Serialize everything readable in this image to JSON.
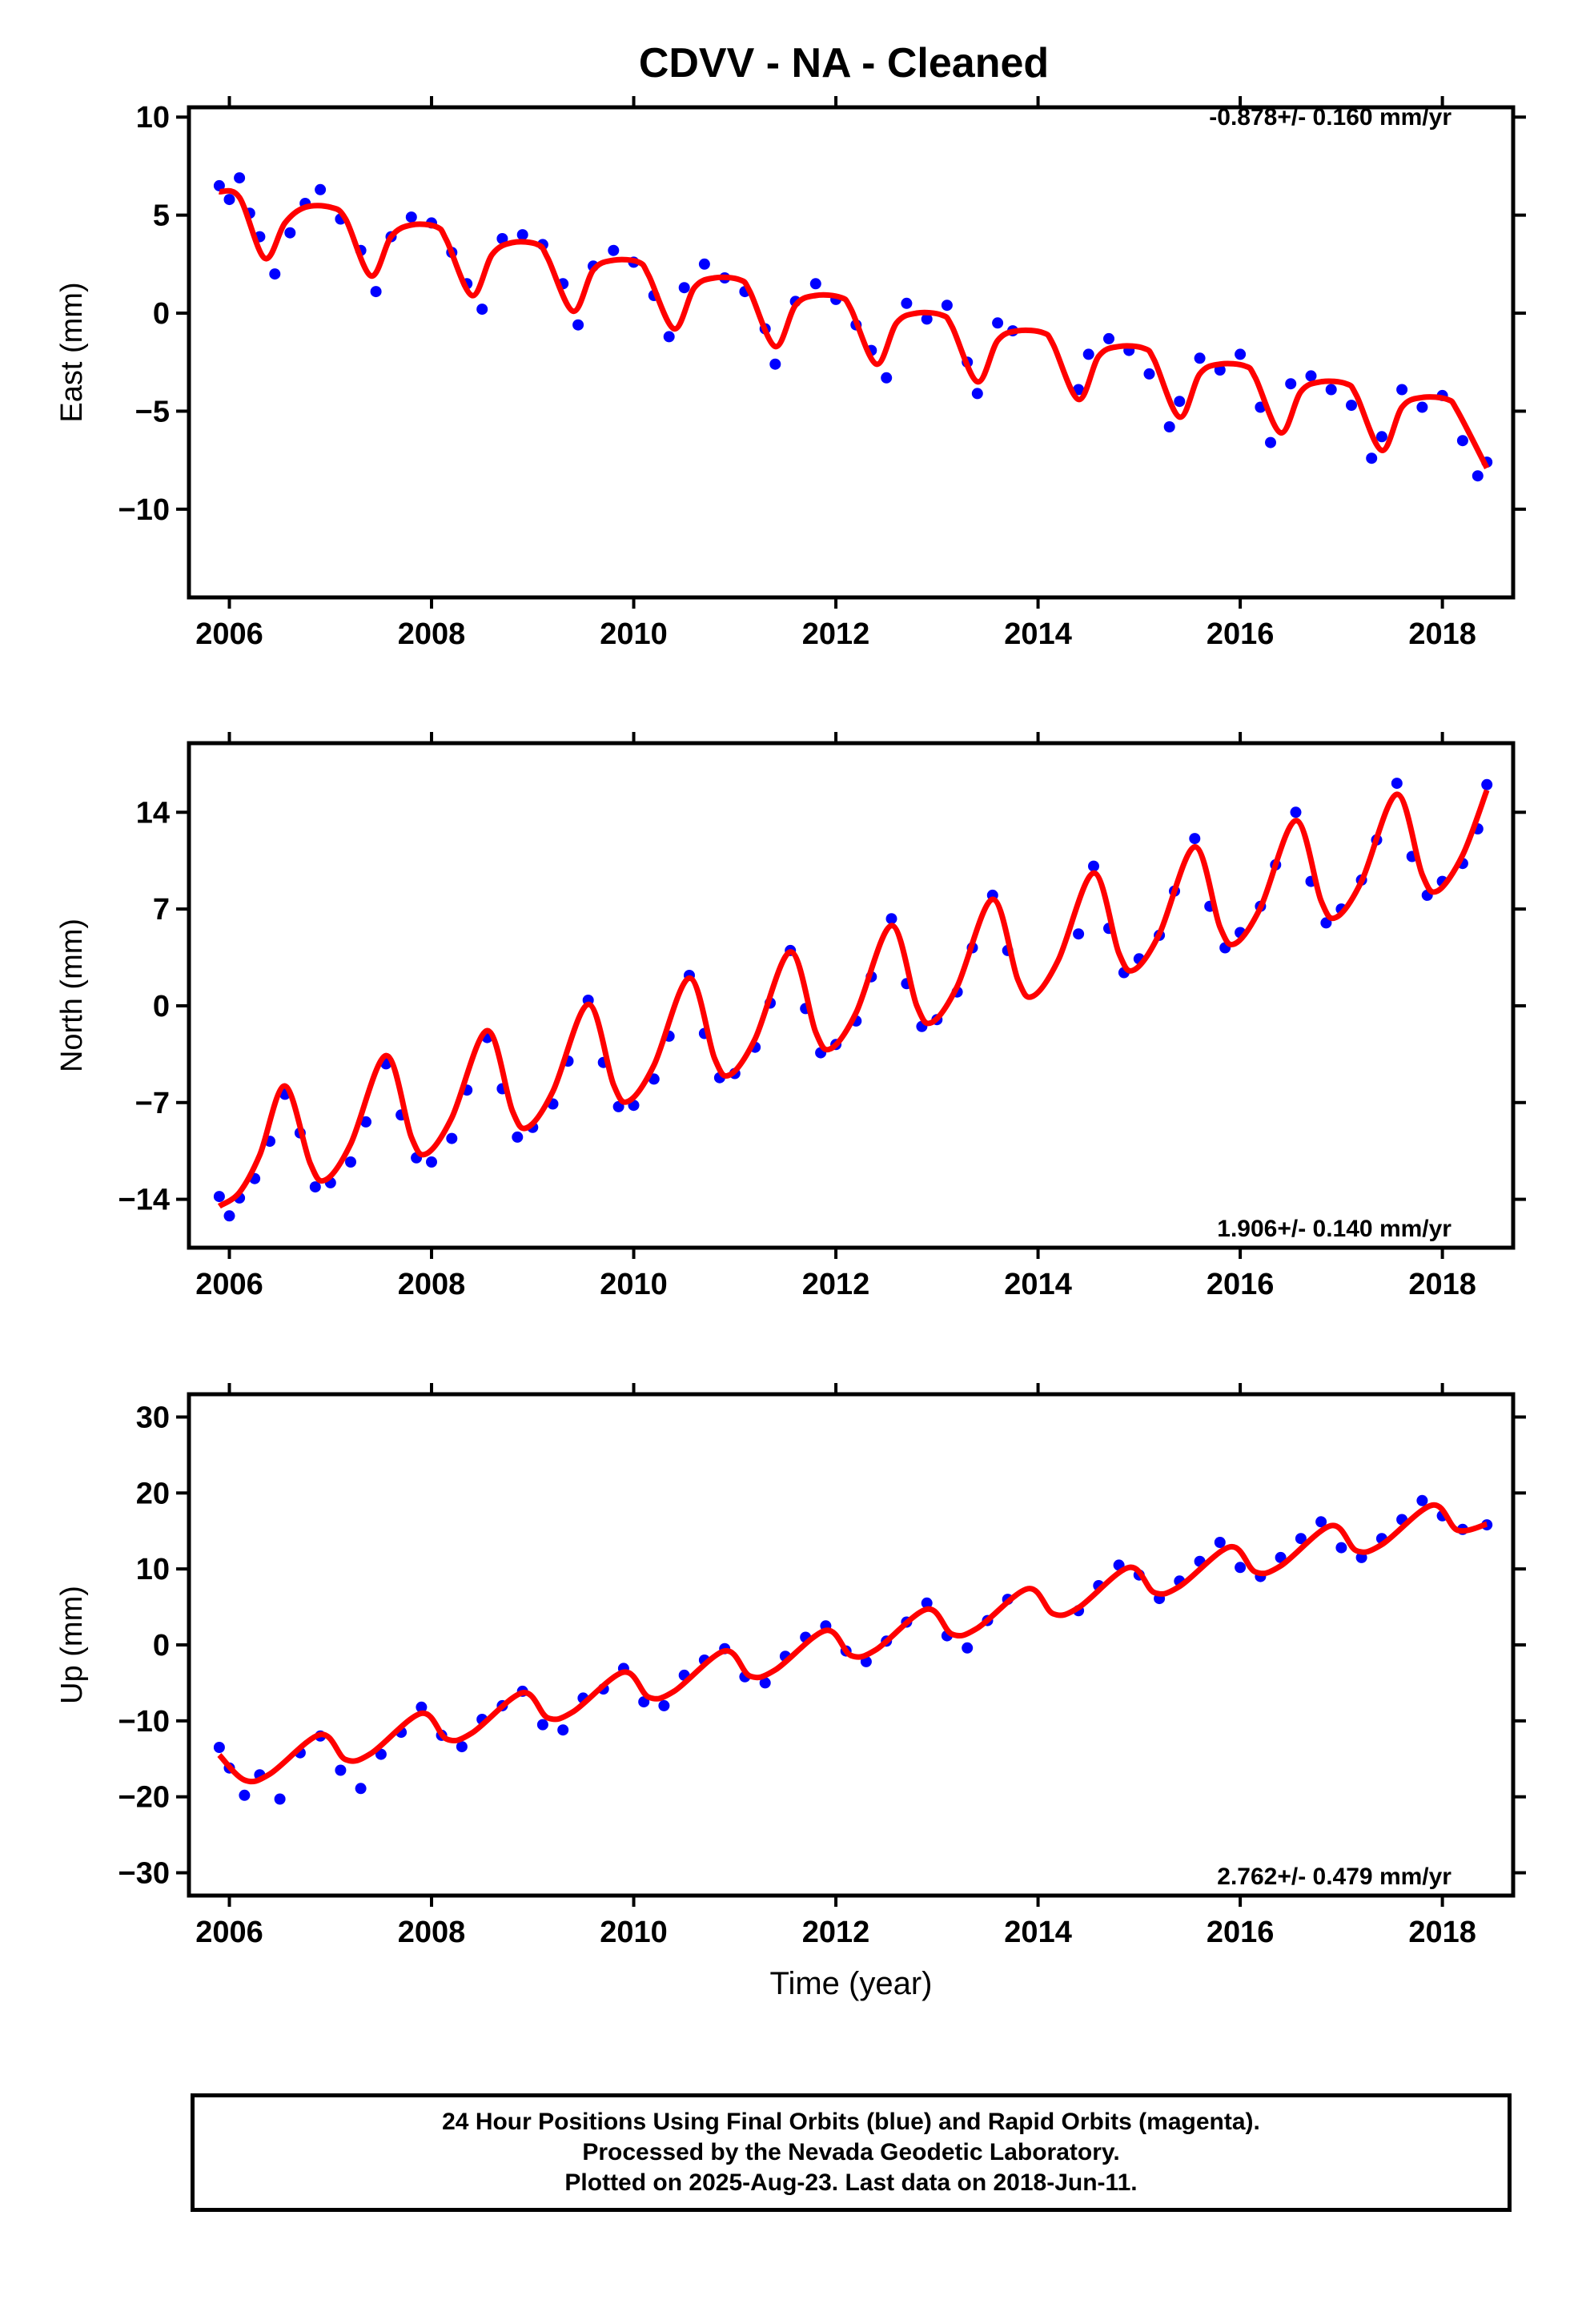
{
  "title": "CDVV  - NA - Cleaned",
  "footer": {
    "line1": "24 Hour Positions Using Final Orbits (blue) and Rapid Orbits (magenta).",
    "line2": "Processed by the Nevada Geodetic Laboratory.",
    "line3": "Plotted on 2025-Aug-23. Last data on 2018-Jun-11."
  },
  "colors": {
    "points": "#0000ff",
    "model": "#ff0000",
    "axes": "#000000"
  },
  "chart_data": [
    {
      "type": "scatter",
      "ylabel": "East (mm)",
      "xlabel": "",
      "rate_label": "-0.878+/- 0.160 mm/yr",
      "rate_position": "top-right",
      "xlim": [
        2005.6,
        2018.7
      ],
      "ylim": [
        -14.5,
        10.5
      ],
      "xticks": [
        2006,
        2008,
        2010,
        2012,
        2014,
        2016,
        2018
      ],
      "yticks": [
        10,
        5,
        0,
        -5,
        -10
      ],
      "series": [
        {
          "style": "points",
          "x": [
            2005.9,
            2006.0,
            2006.1,
            2006.2,
            2006.3,
            2006.45,
            2006.6,
            2006.75,
            2006.9,
            2007.1,
            2007.3,
            2007.45,
            2007.6,
            2007.8,
            2008.0,
            2008.2,
            2008.35,
            2008.5,
            2008.7,
            2008.9,
            2009.1,
            2009.3,
            2009.45,
            2009.6,
            2009.8,
            2010.0,
            2010.2,
            2010.35,
            2010.5,
            2010.7,
            2010.9,
            2011.1,
            2011.3,
            2011.4,
            2011.6,
            2011.8,
            2012.0,
            2012.2,
            2012.35,
            2012.5,
            2012.7,
            2012.9,
            2013.1,
            2013.3,
            2013.4,
            2013.6,
            2013.75,
            2014.4,
            2014.5,
            2014.7,
            2014.9,
            2015.1,
            2015.3,
            2015.4,
            2015.6,
            2015.8,
            2016.0,
            2016.2,
            2016.3,
            2016.5,
            2016.7,
            2016.9,
            2017.1,
            2017.3,
            2017.4,
            2017.6,
            2017.8,
            2018.0,
            2018.2,
            2018.35,
            2018.44
          ],
          "y": [
            6.5,
            5.8,
            6.9,
            5.1,
            3.9,
            2.0,
            4.1,
            5.6,
            6.3,
            4.8,
            3.2,
            1.1,
            3.9,
            4.9,
            4.6,
            3.1,
            1.5,
            0.2,
            3.8,
            4.0,
            3.5,
            1.5,
            -0.6,
            2.4,
            3.2,
            2.6,
            0.9,
            -1.2,
            1.3,
            2.5,
            1.8,
            1.1,
            -0.8,
            -2.6,
            0.6,
            1.5,
            0.7,
            -0.6,
            -1.9,
            -3.3,
            0.5,
            -0.3,
            0.4,
            -2.5,
            -4.1,
            -0.5,
            -0.9,
            -3.9,
            -2.1,
            -1.3,
            -1.9,
            -3.1,
            -5.8,
            -4.5,
            -2.3,
            -2.9,
            -2.1,
            -4.8,
            -6.6,
            -3.6,
            -3.2,
            -3.9,
            -4.7,
            -7.4,
            -6.3,
            -3.9,
            -4.8,
            -4.2,
            -6.5,
            -8.3,
            -7.6
          ]
        },
        {
          "style": "line",
          "x": [
            2005.9,
            2006.1,
            2006.35,
            2006.55,
            2006.75,
            2007.0,
            2007.15,
            2007.4,
            2007.6,
            2007.8,
            2008.05,
            2008.15,
            2008.4,
            2008.6,
            2008.8,
            2009.05,
            2009.15,
            2009.4,
            2009.6,
            2009.8,
            2010.05,
            2010.15,
            2010.4,
            2010.6,
            2010.8,
            2011.05,
            2011.15,
            2011.4,
            2011.6,
            2011.8,
            2012.05,
            2012.15,
            2012.4,
            2012.6,
            2012.8,
            2013.05,
            2013.15,
            2013.4,
            2013.6,
            2013.8,
            2014.05,
            2014.15,
            2014.4,
            2014.6,
            2014.8,
            2015.05,
            2015.15,
            2015.4,
            2015.6,
            2015.8,
            2016.05,
            2016.15,
            2016.4,
            2016.6,
            2016.8,
            2017.05,
            2017.15,
            2017.4,
            2017.6,
            2017.8,
            2018.05,
            2018.15,
            2018.44
          ],
          "y": [
            6.2,
            5.9,
            2.8,
            4.6,
            5.4,
            5.4,
            4.8,
            1.9,
            3.9,
            4.5,
            4.4,
            3.7,
            0.9,
            3.0,
            3.6,
            3.5,
            2.8,
            0.1,
            2.2,
            2.7,
            2.6,
            1.9,
            -0.8,
            1.3,
            1.8,
            1.7,
            1.1,
            -1.7,
            0.4,
            0.9,
            0.8,
            0.2,
            -2.6,
            -0.5,
            0.0,
            -0.1,
            -0.7,
            -3.5,
            -1.4,
            -0.9,
            -1.0,
            -1.6,
            -4.4,
            -2.2,
            -1.7,
            -1.8,
            -2.4,
            -5.3,
            -3.1,
            -2.6,
            -2.7,
            -3.3,
            -6.1,
            -4.0,
            -3.5,
            -3.6,
            -4.2,
            -7.0,
            -4.8,
            -4.3,
            -4.4,
            -5.0,
            -7.9
          ]
        }
      ]
    },
    {
      "type": "scatter",
      "ylabel": "North (mm)",
      "xlabel": "",
      "rate_label": "1.906+/- 0.140 mm/yr",
      "rate_position": "bottom-right",
      "xlim": [
        2005.6,
        2018.7
      ],
      "ylim": [
        -17.5,
        19
      ],
      "xticks": [
        2006,
        2008,
        2010,
        2012,
        2014,
        2016,
        2018
      ],
      "yticks": [
        14,
        7,
        0,
        -7,
        -14
      ],
      "series": [
        {
          "style": "points",
          "x": [
            2005.9,
            2006.0,
            2006.1,
            2006.25,
            2006.4,
            2006.55,
            2006.7,
            2006.85,
            2007.0,
            2007.2,
            2007.35,
            2007.55,
            2007.7,
            2007.85,
            2008.0,
            2008.2,
            2008.35,
            2008.55,
            2008.7,
            2008.85,
            2009.0,
            2009.2,
            2009.35,
            2009.55,
            2009.7,
            2009.85,
            2010.0,
            2010.2,
            2010.35,
            2010.55,
            2010.7,
            2010.85,
            2011.0,
            2011.2,
            2011.35,
            2011.55,
            2011.7,
            2011.85,
            2012.0,
            2012.2,
            2012.35,
            2012.55,
            2012.7,
            2012.85,
            2013.0,
            2013.2,
            2013.35,
            2013.55,
            2013.7,
            2014.4,
            2014.55,
            2014.7,
            2014.85,
            2015.0,
            2015.2,
            2015.35,
            2015.55,
            2015.7,
            2015.85,
            2016.0,
            2016.2,
            2016.35,
            2016.55,
            2016.7,
            2016.85,
            2017.0,
            2017.2,
            2017.35,
            2017.55,
            2017.7,
            2017.85,
            2018.0,
            2018.2,
            2018.35,
            2018.44
          ],
          "y": [
            -13.8,
            -15.2,
            -13.9,
            -12.5,
            -9.8,
            -6.4,
            -9.2,
            -13.1,
            -12.8,
            -11.3,
            -8.4,
            -4.2,
            -7.9,
            -11.0,
            -11.3,
            -9.6,
            -6.1,
            -2.3,
            -6.0,
            -9.5,
            -8.8,
            -7.1,
            -4.0,
            0.4,
            -4.1,
            -7.3,
            -7.2,
            -5.3,
            -2.2,
            2.2,
            -2.0,
            -5.2,
            -4.9,
            -3.0,
            0.2,
            4.0,
            -0.2,
            -3.4,
            -2.8,
            -1.1,
            2.1,
            6.3,
            1.6,
            -1.5,
            -1.0,
            1.0,
            4.2,
            8.0,
            4.0,
            5.2,
            10.1,
            5.6,
            2.4,
            3.4,
            5.1,
            8.3,
            12.1,
            7.2,
            4.2,
            5.3,
            7.2,
            10.2,
            14.0,
            9.0,
            6.0,
            7.0,
            9.1,
            12.0,
            16.1,
            10.8,
            8.0,
            9.0,
            10.3,
            12.8,
            16.0
          ]
        },
        {
          "style": "line",
          "x": [
            2005.9,
            2006.1,
            2006.3,
            2006.55,
            2006.8,
            2006.95,
            2007.2,
            2007.55,
            2007.8,
            2007.95,
            2008.2,
            2008.55,
            2008.8,
            2008.95,
            2009.2,
            2009.55,
            2009.8,
            2009.95,
            2010.2,
            2010.55,
            2010.8,
            2010.95,
            2011.2,
            2011.55,
            2011.8,
            2011.95,
            2012.2,
            2012.55,
            2012.8,
            2012.95,
            2013.2,
            2013.55,
            2013.8,
            2013.95,
            2014.2,
            2014.55,
            2014.8,
            2014.95,
            2015.2,
            2015.55,
            2015.8,
            2015.95,
            2016.2,
            2016.55,
            2016.8,
            2016.95,
            2017.2,
            2017.55,
            2017.8,
            2017.95,
            2018.2,
            2018.44
          ],
          "y": [
            -14.5,
            -13.5,
            -10.8,
            -5.8,
            -11.4,
            -12.6,
            -10.0,
            -3.6,
            -9.5,
            -10.7,
            -8.1,
            -1.8,
            -7.6,
            -8.8,
            -6.2,
            0.1,
            -5.7,
            -6.9,
            -4.3,
            2.0,
            -3.8,
            -5.0,
            -2.4,
            3.9,
            -1.9,
            -3.1,
            -0.5,
            5.8,
            0.0,
            -1.2,
            1.4,
            7.7,
            1.9,
            0.7,
            3.3,
            9.6,
            3.8,
            2.6,
            5.2,
            11.5,
            5.7,
            4.5,
            7.1,
            13.4,
            7.6,
            6.4,
            9.0,
            15.3,
            9.5,
            8.3,
            10.9,
            15.6
          ]
        }
      ]
    },
    {
      "type": "scatter",
      "ylabel": "Up (mm)",
      "xlabel": "Time (year)",
      "rate_label": "2.762+/- 0.479 mm/yr",
      "rate_position": "bottom-right",
      "xlim": [
        2005.6,
        2018.7
      ],
      "ylim": [
        -33,
        33
      ],
      "xticks": [
        2006,
        2008,
        2010,
        2012,
        2014,
        2016,
        2018
      ],
      "yticks": [
        30,
        20,
        10,
        0,
        -10,
        -20,
        -30
      ],
      "series": [
        {
          "style": "points",
          "x": [
            2005.9,
            2006.0,
            2006.15,
            2006.3,
            2006.5,
            2006.7,
            2006.9,
            2007.1,
            2007.3,
            2007.5,
            2007.7,
            2007.9,
            2008.1,
            2008.3,
            2008.5,
            2008.7,
            2008.9,
            2009.1,
            2009.3,
            2009.5,
            2009.7,
            2009.9,
            2010.1,
            2010.3,
            2010.5,
            2010.7,
            2010.9,
            2011.1,
            2011.3,
            2011.5,
            2011.7,
            2011.9,
            2012.1,
            2012.3,
            2012.5,
            2012.7,
            2012.9,
            2013.1,
            2013.3,
            2013.5,
            2013.7,
            2014.4,
            2014.6,
            2014.8,
            2015.0,
            2015.2,
            2015.4,
            2015.6,
            2015.8,
            2016.0,
            2016.2,
            2016.4,
            2016.6,
            2016.8,
            2017.0,
            2017.2,
            2017.4,
            2017.6,
            2017.8,
            2018.0,
            2018.2,
            2018.44
          ],
          "y": [
            -13.5,
            -16.2,
            -19.8,
            -17.1,
            -20.3,
            -14.2,
            -12.0,
            -16.5,
            -18.9,
            -14.4,
            -11.5,
            -8.2,
            -11.9,
            -13.4,
            -9.8,
            -8.0,
            -6.1,
            -10.5,
            -11.2,
            -7.0,
            -5.8,
            -3.1,
            -7.5,
            -8.0,
            -4.0,
            -2.0,
            -0.5,
            -4.2,
            -5.0,
            -1.5,
            1.0,
            2.5,
            -0.8,
            -2.2,
            0.5,
            3.0,
            5.5,
            1.2,
            -0.4,
            3.2,
            6.0,
            4.5,
            7.8,
            10.5,
            9.2,
            6.1,
            8.4,
            11.0,
            13.5,
            10.2,
            9.0,
            11.5,
            14.0,
            16.2,
            12.8,
            11.5,
            14.0,
            16.5,
            19.0,
            17.0,
            15.2,
            15.8
          ]
        },
        {
          "style": "line",
          "x": [
            2005.9,
            2006.15,
            2006.4,
            2006.9,
            2007.15,
            2007.4,
            2007.9,
            2008.15,
            2008.4,
            2008.9,
            2009.15,
            2009.4,
            2009.9,
            2010.15,
            2010.4,
            2010.9,
            2011.15,
            2011.4,
            2011.9,
            2012.15,
            2012.4,
            2012.9,
            2013.15,
            2013.4,
            2013.9,
            2014.15,
            2014.4,
            2014.9,
            2015.15,
            2015.4,
            2015.9,
            2016.15,
            2016.4,
            2016.9,
            2017.15,
            2017.4,
            2017.9,
            2018.15,
            2018.44
          ],
          "y": [
            -14.5,
            -17.8,
            -17.0,
            -11.8,
            -15.1,
            -14.3,
            -9.0,
            -12.4,
            -11.6,
            -6.3,
            -9.6,
            -8.8,
            -3.6,
            -6.9,
            -6.1,
            -0.8,
            -4.1,
            -3.3,
            1.9,
            -1.4,
            -0.6,
            4.7,
            1.4,
            2.2,
            7.4,
            4.1,
            4.9,
            10.2,
            6.9,
            7.7,
            12.9,
            9.6,
            10.4,
            15.7,
            12.4,
            13.2,
            18.4,
            15.1,
            15.9
          ]
        }
      ]
    }
  ]
}
